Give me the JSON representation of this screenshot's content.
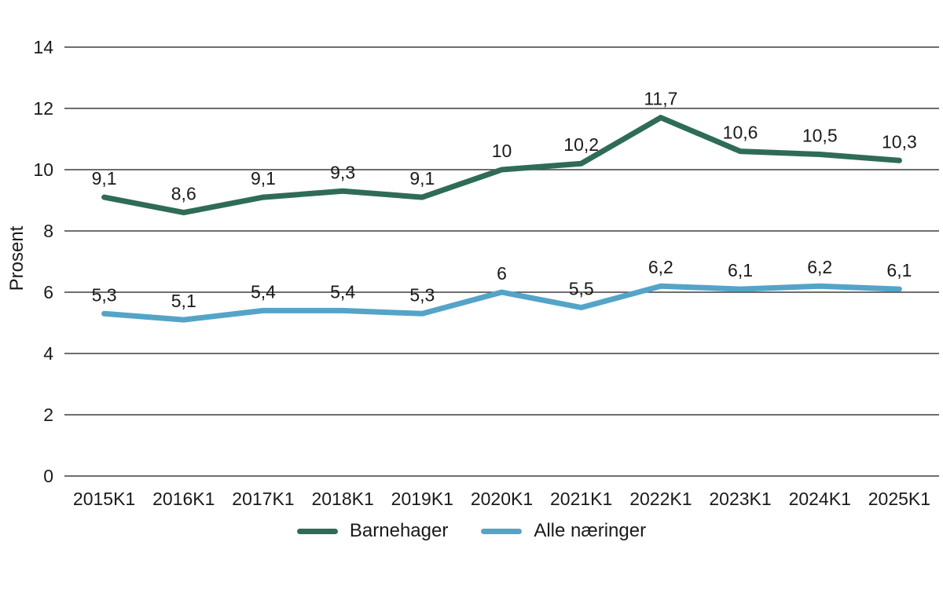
{
  "chart_data": {
    "type": "line",
    "title": "",
    "ylabel": "Prosent",
    "xlabel": "",
    "ylim": [
      0,
      14
    ],
    "ytick_step": 2,
    "grid": true,
    "legend_position": "bottom",
    "background": "#ffffff",
    "grid_color": "#3f3f3f",
    "text_color": "#1a1a1a",
    "categories": [
      "2015K1",
      "2016K1",
      "2017K1",
      "2018K1",
      "2019K1",
      "2020K1",
      "2021K1",
      "2022K1",
      "2023K1",
      "2024K1",
      "2025K1"
    ],
    "series": [
      {
        "name": "Barnehager",
        "color": "#2f6c55",
        "values": [
          9.1,
          8.6,
          9.1,
          9.3,
          9.1,
          10,
          10.2,
          11.7,
          10.6,
          10.5,
          10.3
        ],
        "labels": [
          "9,1",
          "8,6",
          "9,1",
          "9,3",
          "9,1",
          "10",
          "10,2",
          "11,7",
          "10,6",
          "10,5",
          "10,3"
        ]
      },
      {
        "name": "Alle næringer",
        "color": "#54a4c8",
        "values": [
          5.3,
          5.1,
          5.4,
          5.4,
          5.3,
          6,
          5.5,
          6.2,
          6.1,
          6.2,
          6.1
        ],
        "labels": [
          "5,3",
          "5,1",
          "5,4",
          "5,4",
          "5,3",
          "6",
          "5,5",
          "6,2",
          "6,1",
          "6,2",
          "6,1"
        ]
      }
    ]
  }
}
